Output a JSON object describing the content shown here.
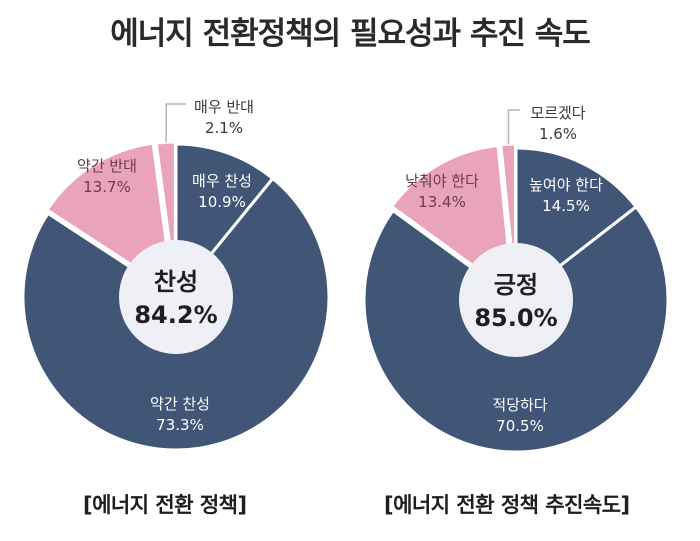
{
  "title": "에너지 전환정책의 필요성과 추진 속도",
  "chart_data": [
    {
      "type": "pie",
      "caption": "[에너지 전환 정책]",
      "center_label": "찬성",
      "center_value": "84.2%",
      "slices": [
        {
          "label": "매우 찬성",
          "value": 10.9,
          "display": "10.9%",
          "color": "#415577"
        },
        {
          "label": "약간 찬성",
          "value": 73.3,
          "display": "73.3%",
          "color": "#415577"
        },
        {
          "label": "약간 반대",
          "value": 13.7,
          "display": "13.7%",
          "color": "#e9a4b9"
        },
        {
          "label": "매우 반대",
          "value": 2.1,
          "display": "2.1%",
          "color": "#e9a4b9"
        }
      ]
    },
    {
      "type": "pie",
      "caption": "[에너지 전환 정책 추진속도]",
      "center_label": "긍정",
      "center_value": "85.0%",
      "slices": [
        {
          "label": "높여야 한다",
          "value": 14.5,
          "display": "14.5%",
          "color": "#415577"
        },
        {
          "label": "적당하다",
          "value": 70.5,
          "display": "70.5%",
          "color": "#415577"
        },
        {
          "label": "낮춰야 한다",
          "value": 13.4,
          "display": "13.4%",
          "color": "#e9a4b9"
        },
        {
          "label": "모르겠다",
          "value": 1.6,
          "display": "1.6%",
          "color": "#e9a4b9"
        }
      ]
    }
  ]
}
